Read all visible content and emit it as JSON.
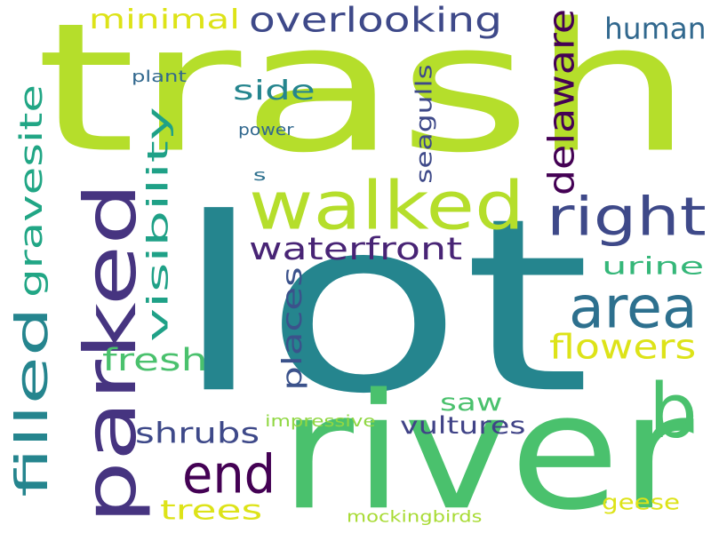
{
  "cloud": {
    "background": "#ffffff",
    "words": [
      {
        "text": "trash",
        "color": "#b5de2b",
        "rotated": false
      },
      {
        "text": "lot",
        "color": "#25858e",
        "rotated": false
      },
      {
        "text": "river",
        "color": "#4ac16d",
        "rotated": false
      },
      {
        "text": "parked",
        "color": "#463480",
        "rotated": true
      },
      {
        "text": "walked",
        "color": "#b5de2b",
        "rotated": false
      },
      {
        "text": "b",
        "color": "#4ac16d",
        "rotated": false
      },
      {
        "text": "end",
        "color": "#440154",
        "rotated": false
      },
      {
        "text": "right",
        "color": "#3e4989",
        "rotated": false
      },
      {
        "text": "area",
        "color": "#2d708e",
        "rotated": false
      },
      {
        "text": "filled",
        "color": "#25858e",
        "rotated": true
      },
      {
        "text": "overlooking",
        "color": "#3e4989",
        "rotated": false
      },
      {
        "text": "delaware",
        "color": "#440154",
        "rotated": true
      },
      {
        "text": "waterfront",
        "color": "#482475",
        "rotated": false
      },
      {
        "text": "visibility",
        "color": "#1fa187",
        "rotated": true
      },
      {
        "text": "gravesite",
        "color": "#21a685",
        "rotated": true
      },
      {
        "text": "flowers",
        "color": "#dde318",
        "rotated": false
      },
      {
        "text": "fresh",
        "color": "#4ac16d",
        "rotated": false
      },
      {
        "text": "minimal",
        "color": "#dde318",
        "rotated": false
      },
      {
        "text": "human",
        "color": "#31688e",
        "rotated": false
      },
      {
        "text": "side",
        "color": "#25858e",
        "rotated": false
      },
      {
        "text": "places",
        "color": "#3b528b",
        "rotated": true
      },
      {
        "text": "shrubs",
        "color": "#3e4989",
        "rotated": false
      },
      {
        "text": "saw",
        "color": "#4ac16d",
        "rotated": false
      },
      {
        "text": "trees",
        "color": "#dde318",
        "rotated": false
      },
      {
        "text": "urine",
        "color": "#35b779",
        "rotated": false
      },
      {
        "text": "seagulls",
        "color": "#3e4989",
        "rotated": true
      },
      {
        "text": "vultures",
        "color": "#404387",
        "rotated": false
      },
      {
        "text": "geese",
        "color": "#dde318",
        "rotated": false
      },
      {
        "text": "impressive",
        "color": "#90d743",
        "rotated": false
      },
      {
        "text": "mockingbirds",
        "color": "#a8db34",
        "rotated": false
      },
      {
        "text": "plant",
        "color": "#31688e",
        "rotated": false
      },
      {
        "text": "power",
        "color": "#31688e",
        "rotated": false
      },
      {
        "text": "s",
        "color": "#2d708e",
        "rotated": false
      }
    ]
  }
}
